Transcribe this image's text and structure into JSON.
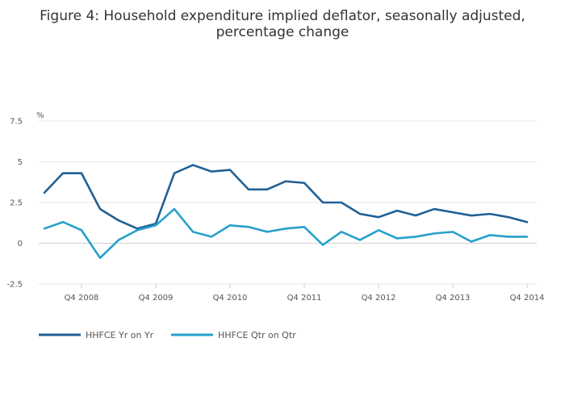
{
  "chart_data": {
    "type": "line",
    "title": "Figure 4: Household expenditure implied deflator, seasonally adjusted, percentage change",
    "title_lines": [
      "Figure 4: Household expenditure implied deflator, seasonally adjusted,",
      "percentage change"
    ],
    "ylabel": "%",
    "xlabel": "",
    "ylim": [
      -2.5,
      7.5
    ],
    "yticks": [
      -2.5,
      0,
      2.5,
      5,
      7.5
    ],
    "ytick_labels": [
      "-2.5",
      "0",
      "2.5",
      "5",
      "7.5"
    ],
    "grid": true,
    "legend_position": "bottom-left",
    "x_tick_labels": [
      "Q4 2008",
      "Q4 2009",
      "Q4 2010",
      "Q4 2011",
      "Q4 2012",
      "Q4 2013",
      "Q4 2014"
    ],
    "x_tick_indices": [
      2,
      6,
      10,
      14,
      18,
      22,
      26
    ],
    "series": [
      {
        "name": "HHFCE Yr on Yr",
        "color": "#206095",
        "values": [
          3.1,
          4.3,
          4.3,
          2.1,
          1.4,
          0.9,
          1.2,
          4.3,
          4.8,
          4.4,
          4.5,
          3.3,
          3.3,
          3.8,
          3.7,
          2.5,
          2.5,
          1.8,
          1.6,
          2.0,
          1.7,
          2.1,
          1.9,
          1.7,
          1.8,
          1.6,
          1.3
        ]
      },
      {
        "name": "HHFCE Qtr on Qtr",
        "color": "#27a0cc",
        "values": [
          0.9,
          1.3,
          0.8,
          -0.9,
          0.2,
          0.8,
          1.1,
          2.1,
          0.7,
          0.4,
          1.1,
          1.0,
          0.7,
          0.9,
          1.0,
          -0.1,
          0.7,
          0.2,
          0.8,
          0.3,
          0.4,
          0.6,
          0.7,
          0.1,
          0.5,
          0.4,
          0.4
        ]
      }
    ]
  }
}
